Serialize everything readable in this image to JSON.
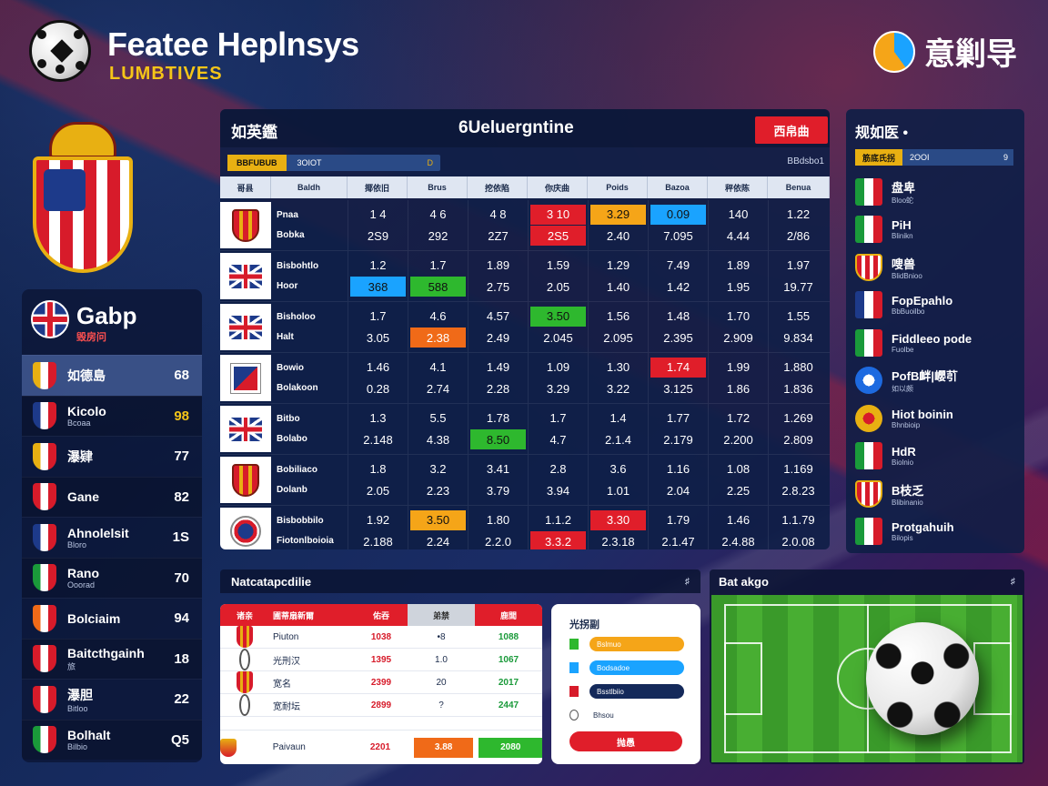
{
  "header": {
    "title": "Featee Heplnsys",
    "subtitle": "LUMBTIVES",
    "brand_text": "意剿导"
  },
  "sidebar": {
    "title": "Gabp",
    "subtitle": "毁房问",
    "items": [
      {
        "name": "如德島",
        "name2": "",
        "score": "68",
        "badge": "#e8b012",
        "active": true,
        "gold": false
      },
      {
        "name": "Kicolo",
        "name2": "Bcoaa",
        "score": "98",
        "badge": "#1d3a8a",
        "active": false,
        "gold": true
      },
      {
        "name": "瀑肄",
        "name2": "",
        "score": "77",
        "badge": "#e8b012",
        "active": false,
        "gold": false
      },
      {
        "name": "Gane",
        "name2": "",
        "score": "82",
        "badge": "#d71b2a",
        "active": false,
        "gold": false
      },
      {
        "name": "Ahnolelsit",
        "name2": "Bloro",
        "score": "1S",
        "badge": "#1d3a8a",
        "active": false,
        "gold": false
      },
      {
        "name": "Rano",
        "name2": "Ooorad",
        "score": "70",
        "badge": "#1a9a3a",
        "active": false,
        "gold": false
      },
      {
        "name": "Bolciaim",
        "name2": "",
        "score": "94",
        "badge": "#f06a18",
        "active": false,
        "gold": false
      },
      {
        "name": "Baitcthgainh",
        "name2": "旅",
        "score": "18",
        "badge": "#d71b2a",
        "active": false,
        "gold": false
      },
      {
        "name": "瀑胆",
        "name2": "Bitloo",
        "score": "22",
        "badge": "#d71b2a",
        "active": false,
        "gold": false
      },
      {
        "name": "Bolhalt",
        "name2": "Bilbio",
        "score": "Q5",
        "badge": "#1a9a3a",
        "active": false,
        "gold": false
      }
    ]
  },
  "main": {
    "left_title": "如英鑑",
    "center_title": "6Ueluergntine",
    "red_button": "西帛曲",
    "filter": {
      "tag": "BBFUBUB",
      "value": "3OIOT",
      "arrow": "D"
    },
    "right_label": "BBdsbo1",
    "columns": [
      "哥县",
      "Baldh",
      "揶依旧",
      "Brus",
      "挖依陷",
      "你庆曲",
      "Poids",
      "Bazoa",
      "秤依陈",
      "Benua"
    ],
    "rows": [
      {
        "flag": "crest",
        "name1": "Pnaa",
        "name2": "Bobka",
        "odds": [
          [
            "1 4",
            "2S9",
            "",
            ""
          ],
          [
            "4 6",
            "292",
            "",
            ""
          ],
          [
            "4 8",
            "2Z7",
            "",
            ""
          ],
          [
            "3 10",
            "2S5",
            "red",
            "red2"
          ],
          [
            "3.29",
            "2.40",
            "yellow",
            ""
          ],
          [
            "0.09",
            "7.095",
            "blue",
            ""
          ],
          [
            "140",
            "4.44",
            "",
            ""
          ],
          [
            "1.22",
            "2/86",
            "",
            ""
          ]
        ]
      },
      {
        "flag": "uk",
        "name1": "Bisbohtlo",
        "name2": "Hoor",
        "odds": [
          [
            "1.2",
            "368",
            "",
            "blue"
          ],
          [
            "1.7",
            "588",
            "",
            "green"
          ],
          [
            "1.89",
            "2.75",
            "",
            ""
          ],
          [
            "1.59",
            "2.05",
            "",
            ""
          ],
          [
            "1.29",
            "1.40",
            "",
            ""
          ],
          [
            "7.49",
            "1.42",
            "",
            ""
          ],
          [
            "1.89",
            "1.95",
            "",
            ""
          ],
          [
            "1.97",
            "19.77",
            "",
            ""
          ]
        ]
      },
      {
        "flag": "uk",
        "name1": "Bisholoo",
        "name2": "Halt",
        "odds": [
          [
            "1.7",
            "3.05",
            "",
            ""
          ],
          [
            "4.6",
            "2.38",
            "",
            "orange"
          ],
          [
            "4.57",
            "2.49",
            "",
            ""
          ],
          [
            "3.50",
            "2.045",
            "green",
            ""
          ],
          [
            "1.56",
            "2.095",
            "",
            ""
          ],
          [
            "1.48",
            "2.395",
            "",
            ""
          ],
          [
            "1.70",
            "2.909",
            "",
            ""
          ],
          [
            "1.55",
            "9.834",
            "",
            ""
          ]
        ]
      },
      {
        "flag": "sq",
        "name1": "Bowio",
        "name2": "Bolakoon",
        "odds": [
          [
            "1.46",
            "0.28",
            "",
            ""
          ],
          [
            "4.1",
            "2.74",
            "",
            ""
          ],
          [
            "1.49",
            "2.28",
            "",
            ""
          ],
          [
            "1.09",
            "3.29",
            "",
            ""
          ],
          [
            "1.30",
            "3.22",
            "",
            ""
          ],
          [
            "1.74",
            "3.125",
            "red",
            ""
          ],
          [
            "1.99",
            "1.86",
            "",
            ""
          ],
          [
            "1.880",
            "1.836",
            "",
            ""
          ]
        ]
      },
      {
        "flag": "uk",
        "name1": "Bitbo",
        "name2": "Bolabo",
        "odds": [
          [
            "1.3",
            "2.148",
            "",
            ""
          ],
          [
            "5.5",
            "4.38",
            "",
            ""
          ],
          [
            "1.78",
            "8.50",
            "",
            "green"
          ],
          [
            "1.7",
            "4.7",
            "",
            ""
          ],
          [
            "1.4",
            "2.1.4",
            "",
            ""
          ],
          [
            "1.77",
            "2.179",
            "",
            ""
          ],
          [
            "1.72",
            "2.200",
            "",
            ""
          ],
          [
            "1.269",
            "2.809",
            "",
            ""
          ]
        ]
      },
      {
        "flag": "crest",
        "name1": "Bobiliaco",
        "name2": "Dolanb",
        "odds": [
          [
            "1.8",
            "2.05",
            "",
            ""
          ],
          [
            "3.2",
            "2.23",
            "",
            ""
          ],
          [
            "3.41",
            "3.79",
            "",
            ""
          ],
          [
            "2.8",
            "3.94",
            "",
            ""
          ],
          [
            "3.6",
            "1.01",
            "",
            ""
          ],
          [
            "1.16",
            "2.04",
            "",
            ""
          ],
          [
            "1.08",
            "2.25",
            "",
            ""
          ],
          [
            "1.169",
            "2.8.23",
            "",
            ""
          ]
        ]
      },
      {
        "flag": "round",
        "name1": "Bisbobbilo",
        "name2": "Fiotonlboioia",
        "odds": [
          [
            "1.92",
            "2.188",
            "",
            ""
          ],
          [
            "3.50",
            "2.24",
            "yellow",
            ""
          ],
          [
            "1.80",
            "2.2.0",
            "",
            ""
          ],
          [
            "1.1.2",
            "3.3.2",
            "",
            "red"
          ],
          [
            "3.30",
            "2.3.18",
            "red",
            ""
          ],
          [
            "1.79",
            "2.1.47",
            "",
            ""
          ],
          [
            "1.46",
            "2.4.88",
            "",
            ""
          ],
          [
            "1.1.79",
            "2.0.08",
            "",
            ""
          ]
        ]
      }
    ]
  },
  "right_panel": {
    "title": "规如医",
    "title_suffix": "•",
    "filter": {
      "tag": "筋底氏拐",
      "value": "2OOI",
      "arrow": "9"
    },
    "items": [
      {
        "flag": "it",
        "name": "盘卑",
        "name2": "Bloo蛇"
      },
      {
        "flag": "it",
        "name": "PiH",
        "name2": "Blinikn"
      },
      {
        "flag": "cr",
        "name": "嗖兽",
        "name2": "BlidBnioo"
      },
      {
        "flag": "fr",
        "name": "FopEpahlo",
        "name2": "BbBuoilbo"
      },
      {
        "flag": "it",
        "name": "Fiddleeo pode",
        "name2": "Fuolbe"
      },
      {
        "flag": "rd",
        "name": "PofB衅|巊䒡",
        "name2": "如以颇"
      },
      {
        "flag": "or",
        "name": "Hiot boinin",
        "name2": "Bhnbioip"
      },
      {
        "flag": "it",
        "name": "HdR",
        "name2": "Biolnio"
      },
      {
        "flag": "cr",
        "name": "B枝乏",
        "name2": "Blibinanio"
      },
      {
        "flag": "it",
        "name": "Protgahuih",
        "name2": "Bilopis"
      }
    ]
  },
  "bottom_table": {
    "title": "Natcatapcdilie",
    "gear_label": "♯",
    "headers": [
      "诸亲",
      "圃蒂扇新爾",
      "佑吞",
      "弟禁",
      "鹿閭"
    ],
    "rows": [
      {
        "icon": "crest",
        "name": "Piuton",
        "v1": "1038",
        "v2": "•8",
        "v3": "1088"
      },
      {
        "icon": "round",
        "name": "光刑汉",
        "v1": "1395",
        "v2": "1.0",
        "v3": "1067"
      },
      {
        "icon": "crest",
        "name": "宽名",
        "v1": "2399",
        "v2": "20",
        "v3": "2017"
      },
      {
        "icon": "round",
        "name": "宽耐坛",
        "v1": "2899",
        "v2": "?",
        "v3": "2447"
      }
    ],
    "footer": {
      "name": "Paivaun",
      "value": "2201",
      "btn1": "3.88",
      "btn2": "2080"
    }
  },
  "bet_card": {
    "title": "光拐副",
    "lines": [
      {
        "color": "#2eb82e",
        "bar_color": "#f5a518",
        "label": "Bslmuo"
      },
      {
        "color": "#1aa3ff",
        "bar_color": "#1aa3ff",
        "label": "Bodsadoe"
      },
      {
        "color": "#d71b2a",
        "bar_color": "#14295a",
        "label": "Bsstlbiio"
      },
      {
        "color": "",
        "bar_color": "",
        "label": "Bhsou"
      }
    ],
    "button": "抛愚"
  },
  "field_panel": {
    "title": "Bat akgo",
    "gear_label": "♯"
  }
}
